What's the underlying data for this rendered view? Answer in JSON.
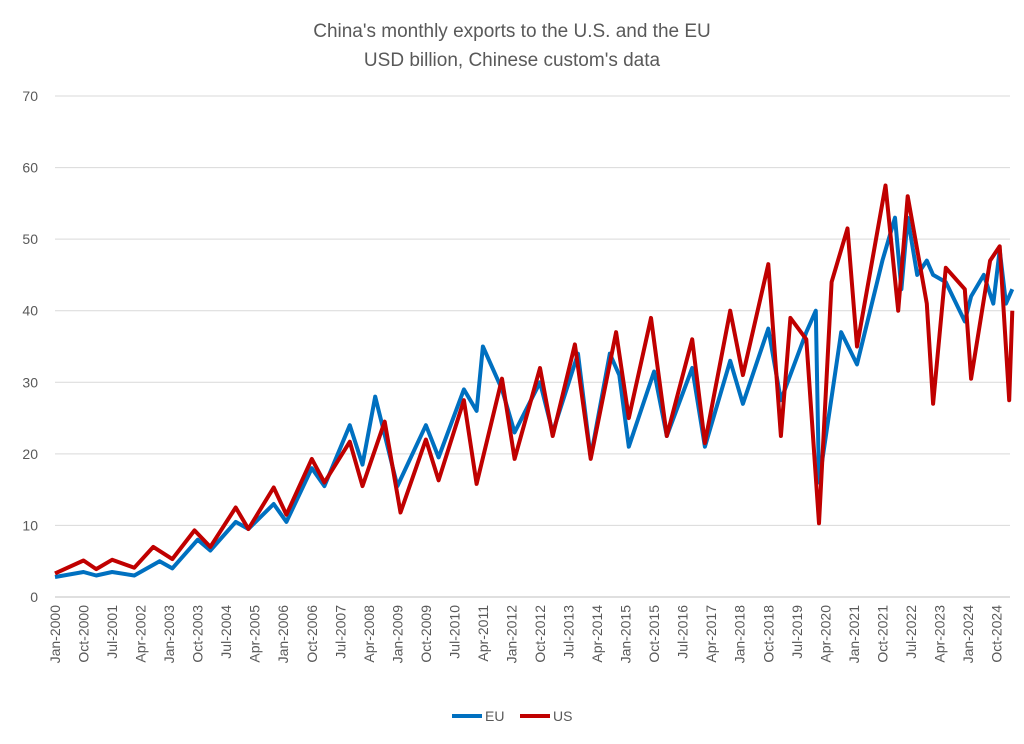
{
  "chart_data": {
    "type": "line",
    "title": "China's monthly exports to the U.S. and the EU",
    "subtitle": "USD billion, Chinese custom's data",
    "xlabel": "",
    "ylabel": "",
    "ylim": [
      0,
      70
    ],
    "yticks": [
      "0",
      "10",
      "20",
      "30",
      "40",
      "50",
      "60",
      "70"
    ],
    "grid": true,
    "legend_position": "bottom",
    "xticks": [
      "Jan-2000",
      "Oct-2000",
      "Jul-2001",
      "Apr-2002",
      "Jan-2003",
      "Oct-2003",
      "Jul-2004",
      "Apr-2005",
      "Jan-2006",
      "Oct-2006",
      "Jul-2007",
      "Apr-2008",
      "Jan-2009",
      "Oct-2009",
      "Jul-2010",
      "Apr-2011",
      "Jan-2012",
      "Oct-2012",
      "Jul-2013",
      "Apr-2014",
      "Jan-2015",
      "Oct-2015",
      "Jul-2016",
      "Apr-2017",
      "Jan-2018",
      "Oct-2018",
      "Jul-2019",
      "Apr-2020",
      "Jan-2021",
      "Oct-2021",
      "Jul-2022",
      "Apr-2023",
      "Jan-2024",
      "Oct-2024"
    ],
    "series": [
      {
        "name": "EU",
        "color": "#0070C0",
        "points": [
          [
            "2000-01",
            2.8
          ],
          [
            "2000-10",
            3.5
          ],
          [
            "2001-02",
            3.0
          ],
          [
            "2001-07",
            3.5
          ],
          [
            "2002-02",
            3.0
          ],
          [
            "2002-10",
            5.0
          ],
          [
            "2003-02",
            4.0
          ],
          [
            "2003-10",
            8.0
          ],
          [
            "2004-02",
            6.5
          ],
          [
            "2004-10",
            10.5
          ],
          [
            "2005-02",
            9.5
          ],
          [
            "2005-10",
            13.0
          ],
          [
            "2006-02",
            10.5
          ],
          [
            "2006-10",
            18.0
          ],
          [
            "2007-02",
            15.5
          ],
          [
            "2007-10",
            24.0
          ],
          [
            "2008-02",
            18.5
          ],
          [
            "2008-06",
            28.0
          ],
          [
            "2009-01",
            15.5
          ],
          [
            "2009-10",
            24.0
          ],
          [
            "2010-02",
            19.5
          ],
          [
            "2010-10",
            29.0
          ],
          [
            "2011-02",
            26.0
          ],
          [
            "2011-04",
            35.0
          ],
          [
            "2011-10",
            29.0
          ],
          [
            "2012-02",
            23.0
          ],
          [
            "2012-10",
            30.0
          ],
          [
            "2013-02",
            23.0
          ],
          [
            "2013-10",
            34.0
          ],
          [
            "2014-02",
            19.5
          ],
          [
            "2014-08",
            34.0
          ],
          [
            "2014-11",
            31.0
          ],
          [
            "2015-02",
            21.0
          ],
          [
            "2015-10",
            31.5
          ],
          [
            "2016-02",
            22.5
          ],
          [
            "2016-10",
            32.0
          ],
          [
            "2017-02",
            21.0
          ],
          [
            "2017-10",
            33.0
          ],
          [
            "2018-02",
            27.0
          ],
          [
            "2018-10",
            37.5
          ],
          [
            "2019-02",
            27.5
          ],
          [
            "2019-10",
            37.0
          ],
          [
            "2020-01",
            40.0
          ],
          [
            "2020-02",
            16.0
          ],
          [
            "2020-09",
            37.0
          ],
          [
            "2021-02",
            32.5
          ],
          [
            "2021-10",
            47.0
          ],
          [
            "2022-02",
            53.0
          ],
          [
            "2022-04",
            43.0
          ],
          [
            "2022-06",
            53.0
          ],
          [
            "2022-09",
            45.0
          ],
          [
            "2022-12",
            47.0
          ],
          [
            "2023-02",
            45.0
          ],
          [
            "2023-06",
            44.0
          ],
          [
            "2023-12",
            38.5
          ],
          [
            "2024-02",
            42.0
          ],
          [
            "2024-06",
            45.0
          ],
          [
            "2024-09",
            41.0
          ],
          [
            "2024-11",
            48.5
          ],
          [
            "2025-01",
            41.0
          ],
          [
            "2025-03",
            43.0
          ]
        ]
      },
      {
        "name": "US",
        "color": "#C00000",
        "points": [
          [
            "2000-01",
            3.3
          ],
          [
            "2000-10",
            5.1
          ],
          [
            "2001-02",
            3.9
          ],
          [
            "2001-07",
            5.2
          ],
          [
            "2002-02",
            4.1
          ],
          [
            "2002-08",
            7.0
          ],
          [
            "2003-02",
            5.3
          ],
          [
            "2003-09",
            9.3
          ],
          [
            "2004-02",
            7.0
          ],
          [
            "2004-10",
            12.5
          ],
          [
            "2005-02",
            9.5
          ],
          [
            "2005-10",
            15.3
          ],
          [
            "2006-02",
            11.5
          ],
          [
            "2006-10",
            19.3
          ],
          [
            "2007-02",
            16.0
          ],
          [
            "2007-10",
            21.7
          ],
          [
            "2008-02",
            15.5
          ],
          [
            "2008-09",
            24.5
          ],
          [
            "2009-02",
            11.8
          ],
          [
            "2009-10",
            22.0
          ],
          [
            "2010-02",
            16.3
          ],
          [
            "2010-10",
            27.5
          ],
          [
            "2011-02",
            15.8
          ],
          [
            "2011-10",
            30.5
          ],
          [
            "2012-02",
            19.3
          ],
          [
            "2012-10",
            32.0
          ],
          [
            "2013-02",
            22.5
          ],
          [
            "2013-09",
            35.3
          ],
          [
            "2014-02",
            19.3
          ],
          [
            "2014-10",
            37.0
          ],
          [
            "2015-02",
            25.0
          ],
          [
            "2015-09",
            39.0
          ],
          [
            "2016-02",
            22.5
          ],
          [
            "2016-10",
            36.0
          ],
          [
            "2017-02",
            21.5
          ],
          [
            "2017-10",
            40.0
          ],
          [
            "2018-02",
            31.0
          ],
          [
            "2018-10",
            46.5
          ],
          [
            "2019-02",
            22.5
          ],
          [
            "2019-05",
            39.0
          ],
          [
            "2019-10",
            36.0
          ],
          [
            "2020-02",
            10.3
          ],
          [
            "2020-06",
            44.0
          ],
          [
            "2020-11",
            51.5
          ],
          [
            "2021-02",
            35.0
          ],
          [
            "2021-11",
            57.5
          ],
          [
            "2022-03",
            40.0
          ],
          [
            "2022-06",
            56.0
          ],
          [
            "2022-12",
            41.0
          ],
          [
            "2023-02",
            27.0
          ],
          [
            "2023-06",
            46.0
          ],
          [
            "2023-12",
            43.0
          ],
          [
            "2024-02",
            30.5
          ],
          [
            "2024-08",
            47.0
          ],
          [
            "2024-11",
            49.0
          ],
          [
            "2025-02",
            27.5
          ],
          [
            "2025-03",
            40.0
          ]
        ]
      }
    ]
  }
}
